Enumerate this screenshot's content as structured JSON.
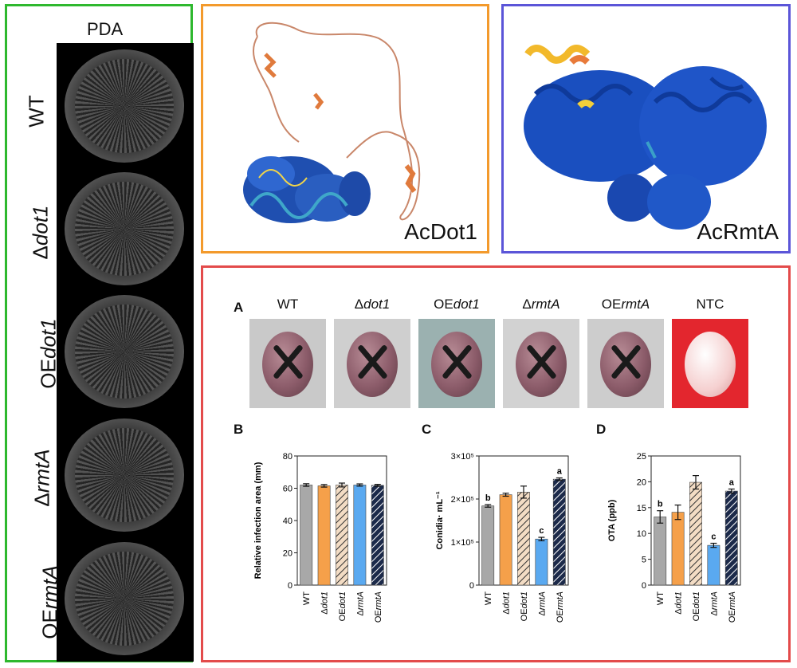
{
  "left_panel": {
    "title": "PDA",
    "strains": [
      {
        "prefix": "",
        "italic": "",
        "suffix": "WT"
      },
      {
        "prefix": "Δ",
        "italic": "dot1",
        "suffix": ""
      },
      {
        "prefix": "OE",
        "italic": "dot1",
        "suffix": ""
      },
      {
        "prefix": "Δ",
        "italic": "rmtA",
        "suffix": ""
      },
      {
        "prefix": "OE",
        "italic": "rmtA",
        "suffix": ""
      }
    ]
  },
  "proteins": {
    "left_label": "AcDot1",
    "right_label": "AcRmtA"
  },
  "colors": {
    "green_border": "#2eb82e",
    "orange_border": "#f39a2c",
    "blue_border": "#5b55d8",
    "red_border": "#e34b4b",
    "bar_gray": "#a8a8a8",
    "bar_orange": "#f5a04a",
    "bar_blue": "#5aa9f0",
    "bar_hatch_light": "#f3dcc4",
    "bar_hatch_dark": "#1c2a4a"
  },
  "panel_a": {
    "letter": "A",
    "photos": [
      {
        "prefix": "",
        "italic": "",
        "suffix": "WT",
        "bg": "#c9c9c9",
        "ntc": false
      },
      {
        "prefix": "Δ",
        "italic": "dot1",
        "suffix": "",
        "bg": "#cfcfcf",
        "ntc": false
      },
      {
        "prefix": "OE",
        "italic": "dot1",
        "suffix": "",
        "bg": "#9bb1b0",
        "ntc": false
      },
      {
        "prefix": "Δ",
        "italic": "rmtA",
        "suffix": "",
        "bg": "#d2d2d2",
        "ntc": false
      },
      {
        "prefix": "OE",
        "italic": "rmtA",
        "suffix": "",
        "bg": "#cdcdcd",
        "ntc": false
      },
      {
        "prefix": "",
        "italic": "",
        "suffix": "NTC",
        "bg": "#e3262e",
        "ntc": true
      }
    ]
  },
  "chart_data": [
    {
      "letter": "B",
      "type": "bar",
      "title": "",
      "xlabel": "",
      "ylabel": "Relative infection area (mm)",
      "categories": [
        "WT",
        "Δdot1",
        "OEdot1",
        "ΔrmtA",
        "OErmtA"
      ],
      "values": [
        62,
        61.5,
        62,
        62,
        61.8
      ],
      "errors": [
        0.8,
        0.8,
        1.2,
        0.7,
        0.6
      ],
      "sig_letters": [
        "",
        "",
        "",
        "",
        ""
      ],
      "ylim": [
        0,
        80
      ],
      "yticks": [
        0,
        20,
        40,
        60,
        80
      ],
      "ytick_labels": [
        "0",
        "20",
        "40",
        "60",
        "80"
      ]
    },
    {
      "letter": "C",
      "type": "bar",
      "title": "",
      "xlabel": "",
      "ylabel": "Conidia· mL⁻¹",
      "categories": [
        "WT",
        "Δdot1",
        "OEdot1",
        "ΔrmtA",
        "OErmtA"
      ],
      "values": [
        184000,
        210000,
        216000,
        107000,
        246000
      ],
      "errors": [
        3000,
        3500,
        14000,
        4000,
        3000
      ],
      "sig_letters": [
        "b",
        "",
        "",
        "c",
        "a"
      ],
      "ylim": [
        0,
        300000
      ],
      "yticks": [
        0,
        100000,
        200000,
        300000
      ],
      "ytick_labels": [
        "0",
        "1×10⁵",
        "2×10⁵",
        "3×10⁵"
      ]
    },
    {
      "letter": "D",
      "type": "bar",
      "title": "",
      "xlabel": "",
      "ylabel": "OTA (ppb)",
      "categories": [
        "WT",
        "Δdot1",
        "OEdot1",
        "ΔrmtA",
        "OErmtA"
      ],
      "values": [
        13.2,
        14.1,
        19.9,
        7.7,
        18.2
      ],
      "errors": [
        1.2,
        1.4,
        1.3,
        0.4,
        0.4
      ],
      "sig_letters": [
        "b",
        "",
        "",
        "c",
        "a"
      ],
      "ylim": [
        0,
        25
      ],
      "yticks": [
        0,
        5,
        10,
        15,
        20,
        25
      ],
      "ytick_labels": [
        "0",
        "5",
        "10",
        "15",
        "20",
        "25"
      ]
    }
  ]
}
